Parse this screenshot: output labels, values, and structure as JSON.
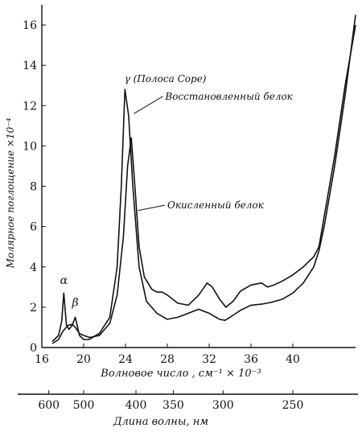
{
  "chart_data": {
    "type": "line",
    "ylabel": "Молярное поглощение ×10⁻⁴",
    "xlabel": "Волновое число , см⁻¹ × 10⁻³",
    "x2label": "Длина волны, нм",
    "xlim": [
      16,
      46
    ],
    "ylim": [
      0,
      17
    ],
    "x_ticks": [
      16,
      20,
      24,
      28,
      32,
      36,
      40
    ],
    "y_ticks": [
      0,
      2,
      4,
      6,
      8,
      10,
      12,
      14,
      16
    ],
    "x2_ticks": [
      {
        "label": "600",
        "wavenumber": 16.67
      },
      {
        "label": "500",
        "wavenumber": 20.0
      },
      {
        "label": "400",
        "wavenumber": 25.0
      },
      {
        "label": "350",
        "wavenumber": 28.57
      },
      {
        "label": "300",
        "wavenumber": 33.33
      },
      {
        "label": "250",
        "wavenumber": 40.0
      }
    ],
    "annotations": [
      {
        "text": "α",
        "x": 18.1,
        "y": 3.0
      },
      {
        "text": "β",
        "x": 19.2,
        "y": 1.9
      },
      {
        "text": "γ (Полоса Соре)",
        "x": 23.9,
        "y": 13.0
      },
      {
        "text": "Восстановленный белок",
        "x": 24.8,
        "y": 11.6,
        "label_x": 27.8,
        "label_y": 12.3
      },
      {
        "text": "Окисленный белок",
        "x": 25.2,
        "y": 6.8,
        "label_x": 28.0,
        "label_y": 6.9
      }
    ],
    "series": [
      {
        "x": [
          17.0,
          17.6,
          17.9,
          18.1,
          18.35,
          18.6,
          18.9,
          19.2,
          19.6,
          20.0,
          20.5,
          21.5,
          22.5,
          23.2,
          23.6,
          23.95,
          24.3,
          24.7,
          25.3,
          26.0,
          27.0,
          28.0,
          29.0,
          30.0,
          31.0,
          32.0,
          33.0,
          33.5,
          34.0,
          35.0,
          36.0,
          37.0,
          38.0,
          39.0,
          40.0,
          41.0,
          42.0,
          42.5,
          43.0,
          44.0,
          45.0,
          46.0
        ],
        "y": [
          0.3,
          0.6,
          1.3,
          2.7,
          1.1,
          0.9,
          1.1,
          1.5,
          0.6,
          0.4,
          0.4,
          0.7,
          1.5,
          4.0,
          8.0,
          12.8,
          11.5,
          8.0,
          4.0,
          2.3,
          1.7,
          1.4,
          1.5,
          1.7,
          1.9,
          1.7,
          1.4,
          1.35,
          1.5,
          1.85,
          2.1,
          2.15,
          2.25,
          2.4,
          2.7,
          3.2,
          4.0,
          4.8,
          6.0,
          9.0,
          12.5,
          16.5
        ]
      },
      {
        "x": [
          17.0,
          17.6,
          18.0,
          18.5,
          18.9,
          19.2,
          19.6,
          20.0,
          20.6,
          21.5,
          22.5,
          23.2,
          23.8,
          24.2,
          24.55,
          24.9,
          25.3,
          25.8,
          26.5,
          27.0,
          27.5,
          28.0,
          29.0,
          30.0,
          31.0,
          31.8,
          32.3,
          33.0,
          33.6,
          34.3,
          35.0,
          36.0,
          37.0,
          37.6,
          38.2,
          39.0,
          40.0,
          41.0,
          42.0,
          42.5,
          43.0,
          44.0,
          45.0,
          46.0
        ],
        "y": [
          0.2,
          0.4,
          0.8,
          1.1,
          1.15,
          1.0,
          0.7,
          0.6,
          0.5,
          0.6,
          1.2,
          2.6,
          5.5,
          9.0,
          10.4,
          8.0,
          5.0,
          3.5,
          2.9,
          2.75,
          2.75,
          2.6,
          2.2,
          2.1,
          2.6,
          3.2,
          3.0,
          2.4,
          2.0,
          2.3,
          2.8,
          3.1,
          3.2,
          3.0,
          3.1,
          3.3,
          3.6,
          4.0,
          4.5,
          5.0,
          6.5,
          9.5,
          13.0,
          16.0
        ]
      }
    ]
  }
}
